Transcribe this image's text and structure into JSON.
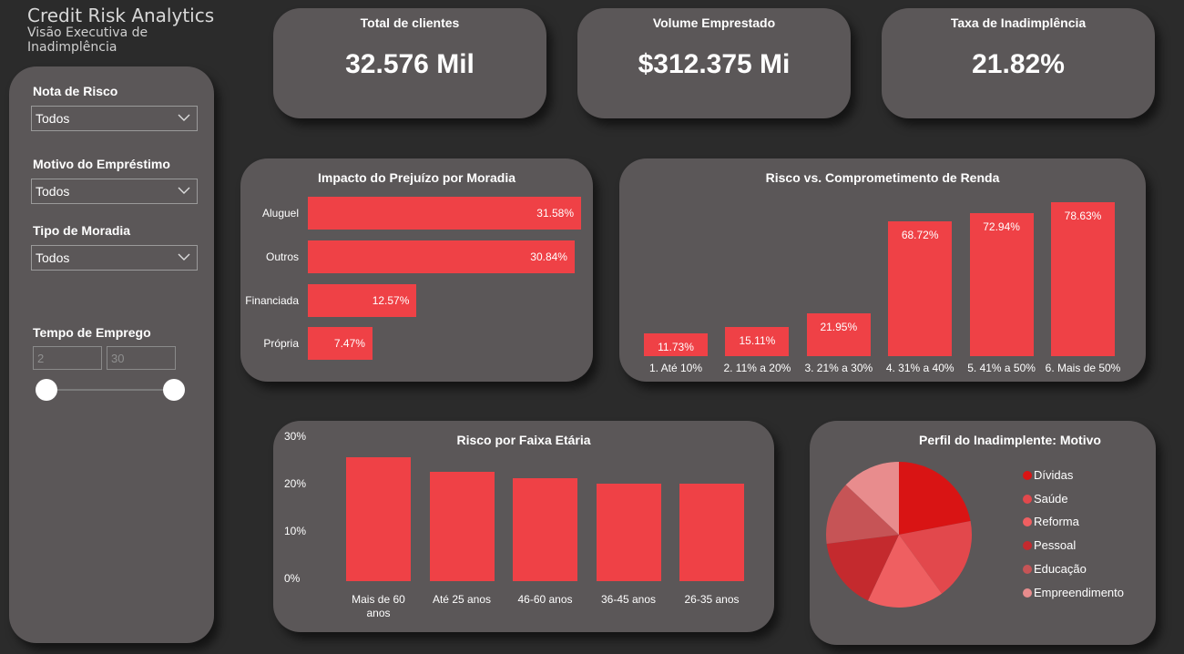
{
  "header": {
    "title": "Credit Risk Analytics",
    "subtitle": "Visão Executiva de Inadimplência"
  },
  "filters": {
    "nota_risco": {
      "label": "Nota de Risco",
      "value": "Todos"
    },
    "motivo": {
      "label": "Motivo do Empréstimo",
      "value": "Todos"
    },
    "moradia": {
      "label": "Tipo de Moradia",
      "value": "Todos"
    },
    "tempo_emprego": {
      "label": "Tempo de Emprego",
      "min": "2",
      "max": "30"
    }
  },
  "kpis": [
    {
      "label": "Total de clientes",
      "value": "32.576 Mil"
    },
    {
      "label": "Volume Emprestado",
      "value": "$312.375 Mi"
    },
    {
      "label": "Taxa de Inadimplência",
      "value": "21.82%"
    }
  ],
  "colors": {
    "bar": "#ef4146",
    "card": "#5b5758",
    "background": "#2b2b2b"
  },
  "chart_data": [
    {
      "type": "bar",
      "orientation": "horizontal",
      "title": "Impacto do Prejuízo por Moradia",
      "categories": [
        "Aluguel",
        "Outros",
        "Financiada",
        "Própria"
      ],
      "values": [
        31.58,
        30.84,
        12.57,
        7.47
      ],
      "labels": [
        "31.58%",
        "30.84%",
        "12.57%",
        "7.47%"
      ]
    },
    {
      "type": "bar",
      "title": "Risco vs. Comprometimento de Renda",
      "categories": [
        "1. Até 10%",
        "2. 11% a 20%",
        "3. 21% a 30%",
        "4. 31% a 40%",
        "5. 41% a 50%",
        "6. Mais de 50%"
      ],
      "values": [
        11.73,
        15.11,
        21.95,
        68.72,
        72.94,
        78.63
      ],
      "labels": [
        "11.73%",
        "15.11%",
        "21.95%",
        "68.72%",
        "72.94%",
        "78.63%"
      ]
    },
    {
      "type": "bar",
      "title": "Risco por Faixa Etária",
      "categories": [
        "Mais de 60 anos",
        "Até 25 anos",
        "46-60 anos",
        "36-45 anos",
        "26-35 anos"
      ],
      "values": [
        26.2,
        23.0,
        21.8,
        20.6,
        20.5
      ],
      "yticks": [
        "30%",
        "20%",
        "10%",
        "0%"
      ],
      "ylim": [
        0,
        30
      ]
    },
    {
      "type": "pie",
      "title": "Perfil do Inadimplente: Motivo",
      "categories": [
        "Dívidas",
        "Saúde",
        "Reforma",
        "Pessoal",
        "Educação",
        "Empreendimento"
      ],
      "values": [
        22,
        18,
        17,
        16,
        14,
        13
      ],
      "colors": [
        "#d91414",
        "#e2484c",
        "#ef5f61",
        "#c42a2e",
        "#c65456",
        "#e88c8d"
      ],
      "legend": "right"
    }
  ]
}
